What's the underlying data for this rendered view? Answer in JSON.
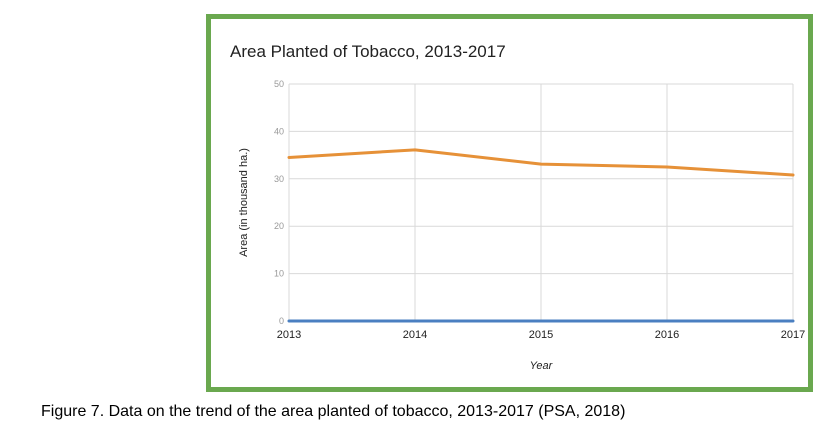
{
  "chart_data": {
    "type": "line",
    "title": "Area Planted of Tobacco, 2013-2017",
    "xlabel": "Year",
    "ylabel": "Area (in thousand ha.)",
    "categories": [
      "2013",
      "2014",
      "2015",
      "2016",
      "2017"
    ],
    "series": [
      {
        "values": [
          34.5,
          36.1,
          33.1,
          32.5,
          30.8
        ],
        "color": "#e69138"
      },
      {
        "values": [
          0,
          0,
          0,
          0,
          0
        ],
        "color": "#4a7fc1"
      }
    ],
    "ylim": [
      0,
      50
    ],
    "yticks": [
      0,
      10,
      20,
      30,
      40,
      50
    ],
    "grid": true
  },
  "caption": "Figure 7. Data on the trend of the area planted of tobacco, 2013-2017 (PSA, 2018)",
  "colors": {
    "frame_border": "#6aa84f",
    "gridline": "#d9d9d9"
  }
}
